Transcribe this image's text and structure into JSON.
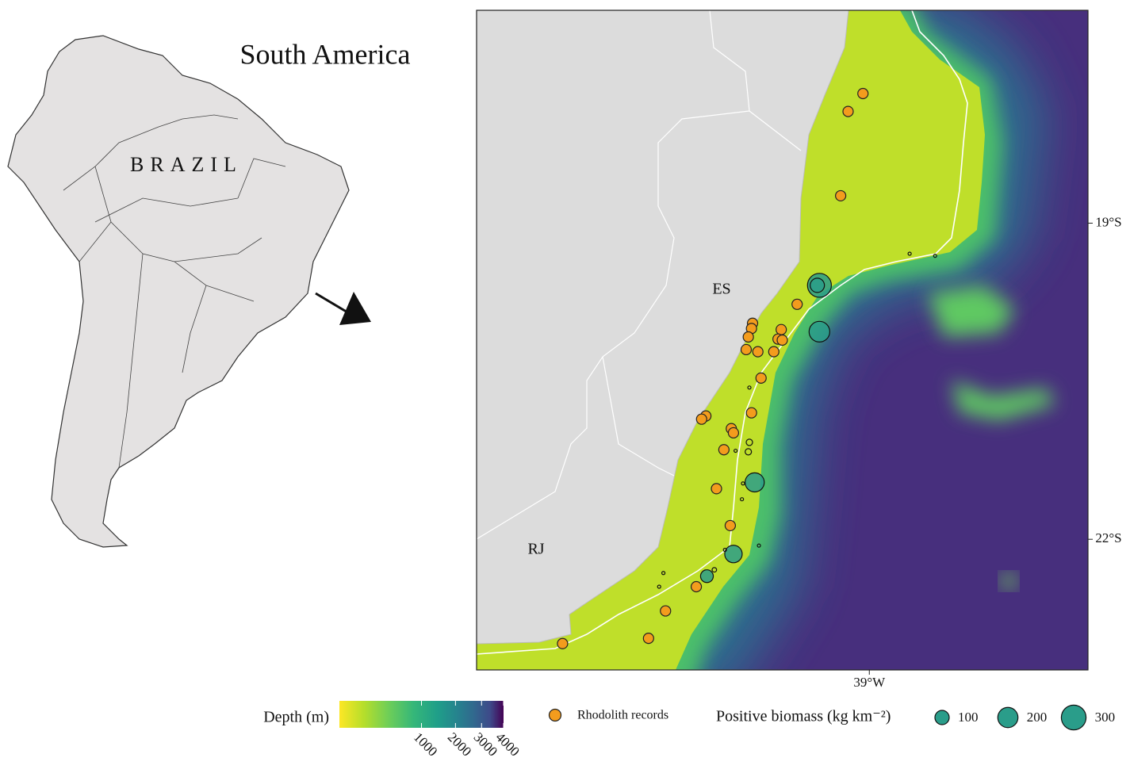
{
  "inset": {
    "title": "South America",
    "country": "BRAZIL"
  },
  "map": {
    "state_labels": [
      "ES",
      "RJ"
    ],
    "xlim": [
      -42.7,
      -36.94
    ],
    "ylim": [
      -23.24,
      -16.98
    ],
    "yticks": [
      {
        "value": -19,
        "label": "19°S"
      },
      {
        "value": -22,
        "label": "22°S"
      }
    ],
    "xticks": [
      {
        "value": -39,
        "label": "39°W"
      }
    ],
    "rhodolith_records": {
      "name": "Rhodolith records",
      "color": "#f39c1d",
      "lon": [
        -39.06,
        -39.2,
        -39.27,
        -39.68,
        -40.1,
        -40.11,
        -40.14,
        -39.83,
        -39.86,
        -39.82,
        -40.16,
        -40.05,
        -39.9,
        -40.02,
        -40.54,
        -40.58,
        -40.11,
        -40.3,
        -40.28,
        -40.37,
        -40.44,
        -40.31,
        -40.63,
        -40.92,
        -41.08,
        -41.89
      ],
      "lat": [
        -17.77,
        -17.94,
        -18.74,
        -19.77,
        -19.95,
        -20.0,
        -20.08,
        -20.01,
        -20.1,
        -20.11,
        -20.2,
        -20.22,
        -20.22,
        -20.47,
        -20.83,
        -20.86,
        -20.8,
        -20.95,
        -20.99,
        -21.15,
        -21.52,
        -21.87,
        -22.45,
        -22.68,
        -22.94,
        -22.99
      ]
    },
    "biomass": {
      "name": "Positive biomass (kg km⁻²)",
      "color": "#2a9d8a",
      "lon": [
        -39.47,
        -39.49,
        -39.47,
        -40.08,
        -40.28,
        -40.53,
        -40.46,
        -40.13,
        -40.14,
        -38.62,
        -38.38,
        -40.13,
        -40.27,
        -40.26,
        -40.19,
        -40.2,
        -40.36,
        -40.04,
        -40.94,
        -40.98
      ],
      "lat": [
        -19.59,
        -19.59,
        -20.03,
        -21.46,
        -22.14,
        -22.35,
        -22.29,
        -21.08,
        -21.17,
        -19.29,
        -19.31,
        -20.56,
        -21.02,
        -21.16,
        -21.47,
        -21.62,
        -22.1,
        -22.06,
        -22.32,
        -22.45
      ],
      "values": [
        280,
        100,
        210,
        180,
        150,
        80,
        10,
        20,
        20,
        5,
        5,
        5,
        5,
        5,
        5,
        5,
        5,
        5,
        5,
        5
      ],
      "legend_values": [
        100,
        200,
        300
      ]
    },
    "depth": {
      "title": "Depth (m)",
      "scale": "sqrt",
      "lim": [
        0,
        4000
      ],
      "ticks": [
        1000,
        2000,
        3000,
        4000
      ]
    }
  }
}
